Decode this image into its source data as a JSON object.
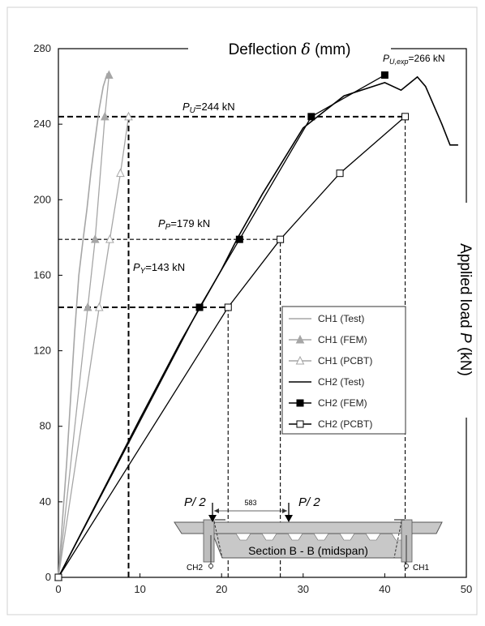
{
  "chart_data": {
    "type": "line",
    "title": "",
    "xlabel": "Deflection δ (mm)",
    "xlabel_parts": {
      "text": "Deflection ",
      "symbol": "δ",
      "unit": " (mm)"
    },
    "ylabel": "Applied load P (kN)",
    "ylabel_parts": {
      "text": "Applied load ",
      "symbol": "P",
      "unit": " (kN)"
    },
    "xlim": [
      0,
      50
    ],
    "ylim": [
      0,
      280
    ],
    "x_ticks": [
      "0",
      "10",
      "20",
      "30",
      "40",
      "50"
    ],
    "y_ticks": [
      "0",
      "40",
      "80",
      "120",
      "160",
      "200",
      "240",
      "280"
    ],
    "grid": false,
    "legend_position": "center-right",
    "colors": {
      "ch1": "#a6a6a6",
      "ch2": "#000000"
    },
    "series": [
      {
        "name": "CH1 (Test)",
        "style": "line",
        "color": "#a6a6a6",
        "x": [
          0,
          0.5,
          1.0,
          1.5,
          2.0,
          2.5,
          3.0,
          3.5,
          4.0,
          4.5,
          5.0,
          5.5,
          6.0
        ],
        "y": [
          0,
          30,
          60,
          95,
          130,
          160,
          178,
          195,
          215,
          232,
          248,
          260,
          267
        ]
      },
      {
        "name": "CH1 (FEM)",
        "style": "line-marker",
        "marker": "filled-triangle",
        "color": "#a6a6a6",
        "x": [
          0,
          3.6,
          4.5,
          5.7,
          6.2
        ],
        "y": [
          0,
          143,
          179,
          244,
          266
        ]
      },
      {
        "name": "CH1 (PCBT)",
        "style": "line-marker",
        "marker": "open-triangle",
        "color": "#a6a6a6",
        "x": [
          0,
          5.0,
          6.3,
          7.6,
          8.6
        ],
        "y": [
          0,
          143,
          179,
          214,
          244
        ]
      },
      {
        "name": "CH2 (Test)",
        "style": "line",
        "color": "#000000",
        "x": [
          0,
          5,
          10,
          15,
          20,
          22,
          25,
          30,
          35,
          40,
          42,
          44,
          45,
          46,
          47,
          48,
          49
        ],
        "y": [
          0,
          42,
          84,
          125,
          163,
          180,
          203,
          238,
          255,
          262,
          258,
          265,
          260,
          250,
          240,
          229,
          229
        ]
      },
      {
        "name": "CH2 (FEM)",
        "style": "line-marker",
        "marker": "filled-square",
        "color": "#000000",
        "x": [
          0,
          17.3,
          22.2,
          31.0,
          40.0
        ],
        "y": [
          0,
          143,
          179,
          244,
          266
        ]
      },
      {
        "name": "CH2 (PCBT)",
        "style": "line-marker",
        "marker": "open-square",
        "color": "#000000",
        "x": [
          0,
          20.8,
          27.2,
          34.5,
          42.5
        ],
        "y": [
          0,
          143,
          179,
          214,
          244
        ]
      }
    ],
    "reference_lines": [
      {
        "label": "P_Y=143 kN",
        "y": 143,
        "x_end": 20.8,
        "style": "dashed",
        "weight": "bold"
      },
      {
        "label": "P_P=179 kN",
        "y": 179,
        "x_end": 27.2,
        "style": "dashed",
        "weight": "normal"
      },
      {
        "label": "P_U=244 kN",
        "y": 244,
        "x_end": 42.5,
        "style": "dashed",
        "weight": "bold"
      },
      {
        "x": 8.6,
        "y_end": 244,
        "style": "dashed",
        "weight": "bold"
      },
      {
        "x": 20.8,
        "y_end": 143,
        "style": "dashed",
        "weight": "normal"
      },
      {
        "x": 27.2,
        "y_end": 179,
        "style": "dashed",
        "weight": "normal"
      },
      {
        "x": 42.5,
        "y_end": 244,
        "style": "dashed",
        "weight": "normal"
      }
    ],
    "annotations": {
      "py": {
        "symbol": "P",
        "sub": "Y",
        "rest": "=143 kN"
      },
      "pp": {
        "symbol": "P",
        "sub": "P",
        "rest": "=179 kN"
      },
      "pu": {
        "symbol": "P",
        "sub": "U",
        "rest": "=244 kN"
      },
      "puexp": {
        "symbol": "P",
        "sub": "U,exp",
        "rest": "=266 kN"
      }
    },
    "inset": {
      "caption": "Section B - B (midspan)",
      "load_label": "P/ 2",
      "dimension": "583",
      "gauge_left": "CH2",
      "gauge_right": "CH1"
    }
  }
}
